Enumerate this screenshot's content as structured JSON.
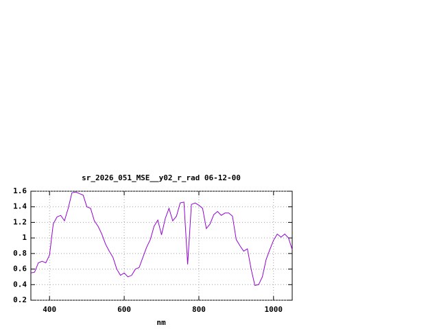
{
  "chart_data": {
    "type": "line",
    "title": "sr_2026_051_MSE__y02_r_rad 06-12-00",
    "x_label": "nm",
    "x": [
      350,
      360,
      370,
      380,
      390,
      400,
      410,
      420,
      430,
      440,
      450,
      460,
      470,
      480,
      490,
      500,
      510,
      520,
      530,
      540,
      550,
      560,
      570,
      580,
      590,
      600,
      610,
      620,
      630,
      640,
      650,
      660,
      670,
      680,
      690,
      700,
      710,
      720,
      730,
      740,
      750,
      760,
      770,
      780,
      790,
      800,
      810,
      820,
      830,
      840,
      850,
      860,
      870,
      880,
      890,
      900,
      910,
      920,
      930,
      940,
      950,
      960,
      970,
      980,
      990,
      1000,
      1010,
      1020,
      1030,
      1040,
      1050
    ],
    "series": [
      {
        "color": "#9400d3",
        "values": [
          0.55,
          0.56,
          0.68,
          0.7,
          0.68,
          0.78,
          1.18,
          1.27,
          1.29,
          1.22,
          1.38,
          1.58,
          1.59,
          1.57,
          1.55,
          1.4,
          1.38,
          1.22,
          1.15,
          1.05,
          0.92,
          0.83,
          0.75,
          0.6,
          0.52,
          0.55,
          0.5,
          0.52,
          0.6,
          0.62,
          0.75,
          0.88,
          0.98,
          1.15,
          1.23,
          1.04,
          1.25,
          1.38,
          1.22,
          1.28,
          1.45,
          1.46,
          0.66,
          1.43,
          1.45,
          1.42,
          1.38,
          1.12,
          1.18,
          1.3,
          1.34,
          1.29,
          1.32,
          1.32,
          1.28,
          0.98,
          0.9,
          0.83,
          0.86,
          0.6,
          0.39,
          0.4,
          0.5,
          0.72,
          0.85,
          0.97,
          1.05,
          1.01,
          1.05,
          1.0,
          0.85
        ]
      }
    ],
    "xlim": [
      350,
      1050
    ],
    "xticks": [
      400,
      600,
      800,
      1000
    ],
    "ylim": [
      0.2,
      1.6
    ],
    "yticks": [
      0.2,
      0.4,
      0.6,
      0.8,
      1,
      1.2,
      1.4,
      1.6
    ],
    "grid": true
  }
}
